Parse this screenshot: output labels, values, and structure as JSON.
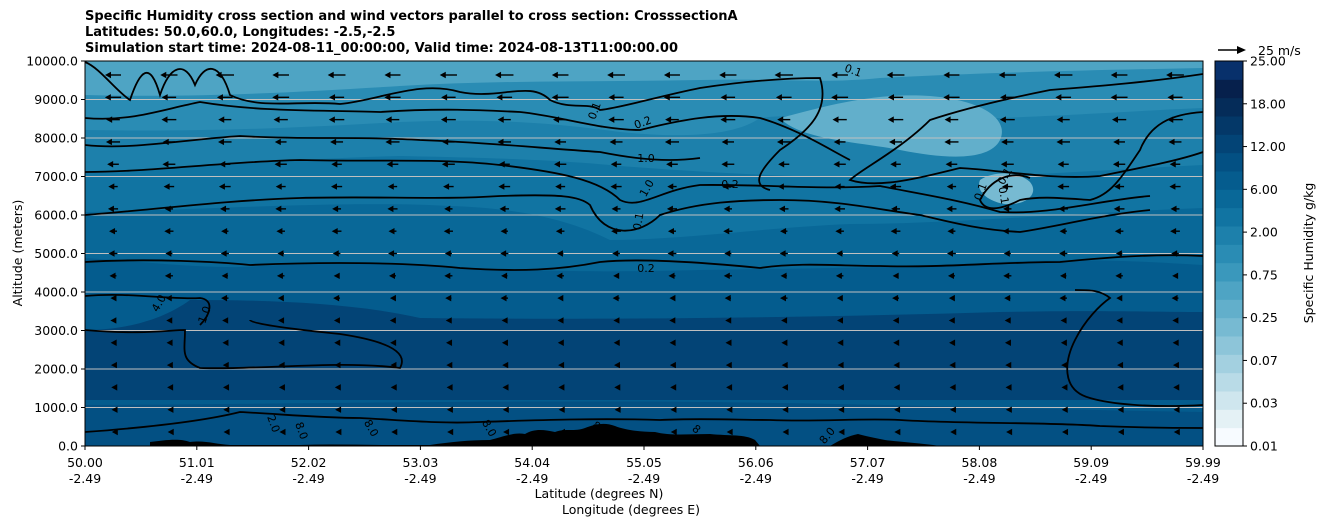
{
  "chart_data": {
    "type": "heatmap",
    "title_lines": [
      "Specific Humidity cross section and wind vectors parallel to cross section: CrosssectionA",
      "Latitudes: 50.0,60.0, Longitudes: -2.5,-2.5",
      "Simulation start time: 2024-08-11_00:00:00, Valid time: 2024-08-13T11:00:00.00"
    ],
    "ylabel": "Altitude (meters)",
    "xlabel_lat": "Latitude (degrees N)",
    "xlabel_lon": "Longitude (degrees E)",
    "ylim": [
      0,
      10000
    ],
    "y_ticks": [
      "0.0",
      "1000.0",
      "2000.0",
      "3000.0",
      "4000.0",
      "5000.0",
      "6000.0",
      "7000.0",
      "8000.0",
      "9000.0",
      "10000.0"
    ],
    "x_ticks": [
      {
        "lat": "50.00",
        "lon": "-2.49"
      },
      {
        "lat": "51.01",
        "lon": "-2.49"
      },
      {
        "lat": "52.02",
        "lon": "-2.49"
      },
      {
        "lat": "53.03",
        "lon": "-2.49"
      },
      {
        "lat": "54.04",
        "lon": "-2.49"
      },
      {
        "lat": "55.05",
        "lon": "-2.49"
      },
      {
        "lat": "56.06",
        "lon": "-2.49"
      },
      {
        "lat": "57.07",
        "lon": "-2.49"
      },
      {
        "lat": "58.08",
        "lon": "-2.49"
      },
      {
        "lat": "59.09",
        "lon": "-2.49"
      },
      {
        "lat": "59.99",
        "lon": "-2.49"
      }
    ],
    "colorbar": {
      "label": "Specific Humidity g/kg",
      "tick_labels": [
        "0.01",
        "0.03",
        "0.07",
        "0.25",
        "0.75",
        "2.00",
        "6.00",
        "12.00",
        "18.00",
        "25.00"
      ],
      "colors": [
        "#f7fbff",
        "#e4f1f5",
        "#cfe6ee",
        "#b9dbe7",
        "#a3d0e0",
        "#8dc5d9",
        "#77bad2",
        "#62afcb",
        "#4ea4c4",
        "#3a98bc",
        "#2a8cb4",
        "#1d80ab",
        "#1174a2",
        "#096898",
        "#055c8e",
        "#035083",
        "#034476",
        "#043868",
        "#052c59",
        "#06204c",
        "#08306b"
      ]
    },
    "quiver_key": "25 m/s",
    "grid": "horizontal",
    "contour_labels": [
      "0.1",
      "0.2",
      "1.0",
      "0.1",
      "0.2",
      "1.0",
      "0.1",
      "0.2",
      "4.0",
      "1.0",
      "2.0",
      "8.0",
      "8.0",
      "8.0",
      "8.0",
      "8",
      "8.0",
      "0.1",
      "0.1",
      "0.1"
    ]
  },
  "colors": {
    "terrain": "#000000",
    "contour": "#000000"
  }
}
